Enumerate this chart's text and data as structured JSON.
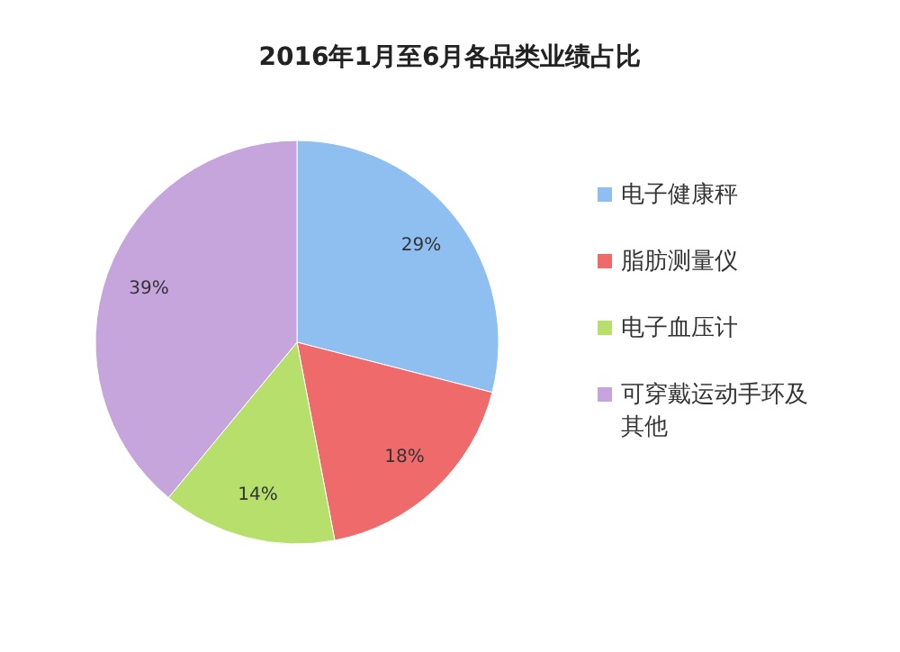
{
  "chart_data": {
    "type": "pie",
    "title": "2016年1月至6月各品类业绩占比",
    "categories": [
      "电子健康秤",
      "脂肪测量仪",
      "电子血压计",
      "可穿戴运动手环及其他"
    ],
    "values": [
      29,
      18,
      14,
      39
    ],
    "colors": [
      "#8fbff0",
      "#ef6b6b",
      "#b6df6c",
      "#c6a4dc"
    ],
    "value_labels": [
      "29%",
      "18%",
      "14%",
      "39%"
    ],
    "legend": "right"
  }
}
